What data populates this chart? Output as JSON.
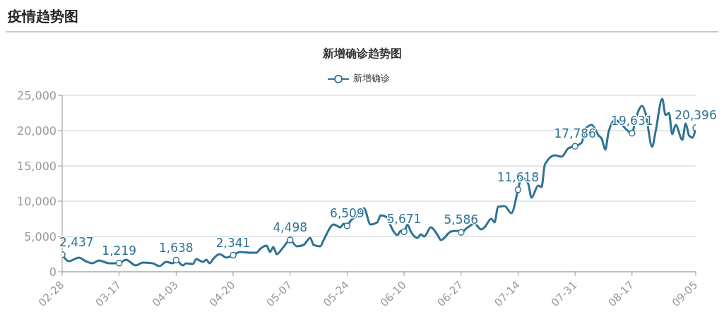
{
  "chart_data": {
    "type": "line",
    "title": "疫情趋势图",
    "subtitle": "新增确诊趋势图",
    "x": [
      "--02-28",
      "--03-02",
      "--03-05",
      "--03-07",
      "--03-09",
      "--03-11",
      "--03-14",
      "--03-17",
      "--03-19",
      "--03-22",
      "--03-24",
      "--03-27",
      "--03-29",
      "--03-31",
      "--04-02",
      "--04-03",
      "--04-05",
      "--04-06",
      "--04-08",
      "--04-09",
      "--04-11",
      "--04-12",
      "--04-13",
      "--04-14",
      "--04-16",
      "--04-18",
      "--04-20",
      "--04-22",
      "--04-25",
      "--04-27",
      "--04-28",
      "--04-30",
      "--05-01",
      "--05-02",
      "--05-03",
      "--05-05",
      "--05-07",
      "--05-09",
      "--05-11",
      "--05-13",
      "--05-14",
      "--05-16",
      "--05-17",
      "--05-20",
      "--05-22",
      "--05-23",
      "--05-24",
      "--05-25",
      "--05-27",
      "--05-29",
      "--05-31",
      "--06-02",
      "--06-03",
      "--06-05",
      "--06-06",
      "--06-08",
      "--06-09",
      "--06-10",
      "--06-11",
      "--06-12",
      "--06-14",
      "--06-15",
      "--06-16",
      "--06-18",
      "--06-20",
      "--06-21",
      "--06-24",
      "--06-26",
      "--06-27",
      "--06-29",
      "--07-01",
      "--07-03",
      "--07-04",
      "--07-06",
      "--07-07",
      "--07-08",
      "--07-10",
      "--07-12",
      "--07-14",
      "--07-15",
      "--07-17",
      "--07-18",
      "--07-20",
      "--07-21",
      "--07-22",
      "--07-25",
      "--07-27",
      "--07-29",
      "--07-31",
      "--08-02",
      "--08-03",
      "--08-05",
      "--08-07",
      "--08-08",
      "--08-09",
      "--08-10",
      "--08-12",
      "--08-14",
      "--08-15",
      "--08-17",
      "--08-18",
      "--08-20",
      "--08-21",
      "--08-23",
      "--08-24",
      "--08-26",
      "--08-27",
      "--08-28",
      "--08-29",
      "--08-30",
      "--09-01",
      "--09-02",
      "--09-03",
      "--09-04",
      "--09-05"
    ],
    "series": [
      {
        "name": "新增确诊",
        "color": "#2e7394",
        "values": [
          2437,
          1500,
          2000,
          1500,
          1200,
          1600,
          1200,
          1219,
          1700,
          900,
          1300,
          1200,
          800,
          1400,
          1200,
          1638,
          900,
          1200,
          1100,
          1800,
          1400,
          1700,
          1200,
          1800,
          2500,
          2000,
          2341,
          2800,
          2700,
          2700,
          3200,
          3700,
          2800,
          3500,
          2500,
          3500,
          4498,
          3600,
          3800,
          4800,
          3800,
          3600,
          4500,
          6700,
          6300,
          6800,
          6509,
          7200,
          8000,
          9000,
          6700,
          7000,
          8000,
          7700,
          6500,
          5200,
          5800,
          5671,
          6700,
          5700,
          4800,
          5300,
          5000,
          6300,
          5200,
          4500,
          5700,
          5800,
          5586,
          6300,
          6800,
          6000,
          6300,
          7500,
          7000,
          9200,
          9300,
          8300,
          11618,
          13300,
          12500,
          10500,
          12200,
          12000,
          15200,
          16500,
          16300,
          17500,
          17786,
          18300,
          20200,
          20800,
          19300,
          18800,
          17300,
          19800,
          21500,
          20800,
          20300,
          19631,
          21500,
          23500,
          22500,
          17700,
          19800,
          24500,
          22200,
          22500,
          19500,
          20800,
          18700,
          21000,
          19300,
          19000,
          20396
        ],
        "value_labels": [
          "2,437",
          null,
          null,
          null,
          null,
          null,
          null,
          "1,219",
          null,
          null,
          null,
          null,
          null,
          null,
          null,
          "1,638",
          null,
          null,
          null,
          null,
          null,
          null,
          null,
          null,
          null,
          null,
          "2,341",
          null,
          null,
          null,
          null,
          null,
          null,
          null,
          null,
          null,
          "4,498",
          null,
          null,
          null,
          null,
          null,
          null,
          null,
          null,
          null,
          "6,509",
          null,
          null,
          null,
          null,
          null,
          null,
          null,
          null,
          null,
          null,
          "5,671",
          null,
          null,
          null,
          null,
          null,
          null,
          null,
          null,
          null,
          null,
          "5,586",
          null,
          null,
          null,
          null,
          null,
          null,
          null,
          null,
          null,
          "11,618",
          null,
          null,
          null,
          null,
          null,
          null,
          null,
          null,
          null,
          "17,786",
          null,
          null,
          null,
          null,
          null,
          null,
          null,
          null,
          null,
          null,
          "19,631",
          null,
          null,
          null,
          null,
          null,
          null,
          null,
          null,
          null,
          null,
          null,
          null,
          null,
          null,
          "20,396"
        ]
      }
    ],
    "xlim": [
      "--02-28",
      "--09-05"
    ],
    "xticks": [
      {
        "value": "--02-28",
        "label": "02-28"
      },
      {
        "value": "--03-17",
        "label": "03-17"
      },
      {
        "value": "--04-03",
        "label": "04-03"
      },
      {
        "value": "--04-20",
        "label": "04-20"
      },
      {
        "value": "--05-07",
        "label": "05-07"
      },
      {
        "value": "--05-24",
        "label": "05-24"
      },
      {
        "value": "--06-10",
        "label": "06-10"
      },
      {
        "value": "--06-27",
        "label": "06-27"
      },
      {
        "value": "--07-14",
        "label": "07-14"
      },
      {
        "value": "--07-31",
        "label": "07-31"
      },
      {
        "value": "--08-17",
        "label": "08-17"
      },
      {
        "value": "--09-05",
        "label": "09-05"
      }
    ],
    "ylim": [
      0,
      25000
    ],
    "yticks": [
      0,
      {
        "value": 5000,
        "label": "5,000"
      },
      {
        "value": 10000,
        "label": "10,000"
      },
      {
        "value": 15000,
        "label": "15,000"
      },
      {
        "value": 20000,
        "label": "20,000"
      },
      {
        "value": 25000,
        "label": "25,000"
      }
    ],
    "grid": "y",
    "legend": "top",
    "line_style": "solid"
  }
}
